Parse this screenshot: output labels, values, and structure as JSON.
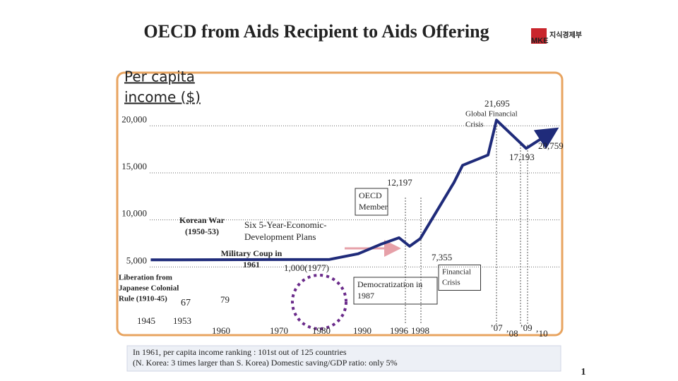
{
  "chart_data": {
    "type": "line",
    "title": "OECD from Aids Recipient to Aids Offering",
    "logo": [
      "MKE",
      "지식경제부"
    ],
    "y_label": [
      "Per capita",
      "income ($)"
    ],
    "yticks": [
      {
        "value": 5000,
        "label": "5,000"
      },
      {
        "value": 10000,
        "label": "10,000"
      },
      {
        "value": 15000,
        "label": "15,000"
      },
      {
        "value": 20000,
        "label": "20,000"
      }
    ],
    "ylim": [
      0,
      22500
    ],
    "grid": true,
    "xticks": [
      {
        "value": 1945,
        "label": "1945"
      },
      {
        "value": 1953,
        "label": "1953"
      },
      1960,
      1970,
      1980,
      1990,
      1996,
      1998,
      {
        "value": 2007,
        "label": "’07"
      },
      {
        "value": 2008,
        "label": "’08"
      },
      {
        "value": 2009,
        "label": "’09"
      },
      {
        "value": 2010,
        "label": "’10"
      }
    ],
    "series": [
      {
        "color": "#1f2b7a",
        "x": [
          1946,
          1982,
          1989,
          1993,
          1996,
          1997,
          1998,
          2002,
          2003,
          2006,
          2007,
          2009,
          2010.8
        ],
        "values": [
          5750,
          5800,
          6400,
          7400,
          8100,
          7200,
          8000,
          14000,
          15800,
          16900,
          20600,
          17600,
          19500
        ]
      }
    ],
    "annotations": [
      [
        "21,695"
      ],
      [
        "Global Financial",
        "Crisis"
      ],
      [
        "20,759"
      ],
      [
        "17,193"
      ],
      [
        "12,197"
      ],
      [
        "OECD",
        "Member"
      ],
      [
        "Six 5-Year-Economic-",
        "Development Plans"
      ],
      [
        "Korean War",
        "(1950-53)"
      ],
      [
        "Military Coup in",
        "1961"
      ],
      [
        "1,000(1977)"
      ],
      [
        "7,355"
      ],
      [
        "Financial",
        "Crisis"
      ],
      [
        "Liberation from",
        "Japanese  Colonial",
        "Rule (1910-45)"
      ],
      [
        "67"
      ],
      [
        "79"
      ],
      [
        "Democratization in",
        "1987"
      ]
    ],
    "footnote": [
      "In 1961, per capita income ranking : 101st out of 125 countries",
      "(N. Korea: 3 times larger than S. Korea) Domestic saving/GDP ratio: only 5%"
    ],
    "page_number": "1"
  }
}
